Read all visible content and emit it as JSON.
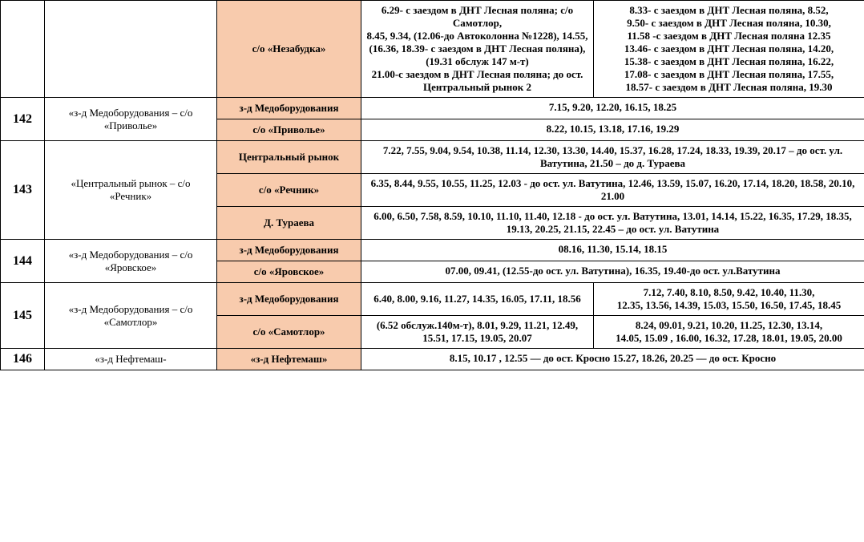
{
  "rows": [
    {
      "route": "",
      "desc": "",
      "stops": [
        {
          "name": "с/о «Незабудка»",
          "col4": "6.29- с заездом в ДНТ Лесная поляна; с/о Самотлор,\n8.45, 9.34, (12.06-до Автоколонна №1228), 14.55, (16.36, 18.39- с заездом в ДНТ Лесная поляна), (19.31 обслуж 147 м-т)\n21.00-с заездом в ДНТ Лесная поляна; до ост. Центральный рынок 2",
          "col5": "8.33- с заездом в ДНТ Лесная поляна, 8.52,\n9.50- с заездом в ДНТ Лесная поляна, 10.30,\n11.58 -с заездом в ДНТ Лесная поляна  12.35\n13.46- с заездом в ДНТ Лесная поляна, 14.20,\n15.38- с заездом в ДНТ Лесная поляна, 16.22,\n17.08- с заездом в ДНТ Лесная поляна, 17.55,\n18.57- с заездом в ДНТ Лесная поляна, 19.30",
          "merged": false
        }
      ]
    },
    {
      "route": "142",
      "desc": "«з-д Медоборудования – с/о «Приволье»",
      "stops": [
        {
          "name": "з-д Медоборудования",
          "sched": "7.15, 9.20, 12.20, 16.15, 18.25",
          "merged": true
        },
        {
          "name": "с/о «Приволье»",
          "sched": "8.22, 10.15, 13.18, 17.16, 19.29",
          "merged": true
        }
      ]
    },
    {
      "route": "143",
      "desc": "«Центральный рынок – с/о «Речник»",
      "stops": [
        {
          "name": "Центральный рынок",
          "sched": "7.22, 7.55, 9.04, 9.54, 10.38, 11.14, 12.30, 13.30, 14.40, 15.37, 16.28, 17.24, 18.33, 19.39, 20.17 – до ост. ул. Ватутина,  21.50 – до д. Тураева",
          "merged": true,
          "valign": "mid"
        },
        {
          "name": "с/о «Речник»",
          "sched": "6.35, 8.44, 9.55, 10.55, 11.25, 12.03 - до ост. ул. Ватутина, 12.46, 13.59, 15.07, 16.20, 17.14, 18.20, 18.58, 20.10, 21.00",
          "merged": true,
          "valign": "mid"
        },
        {
          "name": "Д. Тураева",
          "sched": "6.00,  6.50, 7.58, 8.59, 10.10, 11.10, 11.40, 12.18 -  до ост. ул. Ватутина, 13.01, 14.14, 15.22, 16.35, 17.29, 18.35, 19.13, 20.25, 21.15, 22.45 –  до ост. ул. Ватутина",
          "merged": true,
          "valign": "mid"
        }
      ]
    },
    {
      "route": "144",
      "desc": "«з-д Медоборудования – с/о «Яровское»",
      "stops": [
        {
          "name": "з-д Медоборудования",
          "sched": "08.16, 11.30, 15.14, 18.15",
          "merged": true
        },
        {
          "name": "с/о «Яровское»",
          "sched": "07.00, 09.41, (12.55-до ост. ул. Ватутина), 16.35, 19.40-до ост. ул.Ватутина",
          "merged": true
        }
      ]
    },
    {
      "route": "145",
      "desc": "«з-д Медоборудования – с/о «Самотлор»",
      "stops": [
        {
          "name": "з-д Медоборудования",
          "col4": "6.40, 8.00, 9.16, 11.27, 14.35, 16.05, 17.11, 18.56",
          "col5": "7.12, 7.40, 8.10, 8.50, 9.42, 10.40, 11.30,\n12.35, 13.56, 14.39, 15.03, 15.50, 16.50, 17.45, 18.45",
          "merged": false,
          "valign": "mid"
        },
        {
          "name": "с/о «Самотлор»",
          "col4": "(6.52 обслуж.140м-т), 8.01, 9.29, 11.21, 12.49, 15.51, 17.15, 19.05, 20.07",
          "col5": "8.24, 09.01, 9.21, 10.20, 11.25, 12.30, 13.14,\n14.05, 15.09 , 16.00, 16.32, 17.28, 18.01, 19.05, 20.00",
          "merged": false,
          "valign": "mid"
        }
      ]
    },
    {
      "route": "146",
      "desc": "«з-д Нефтемаш-",
      "stops": [
        {
          "name": "«з-д Нефтемаш»",
          "sched": "8.15,  10.17 , 12.55 –– до ост. Кросно 15.27, 18.26, 20.25 –– до ост. Кросно",
          "merged": true
        }
      ]
    }
  ]
}
